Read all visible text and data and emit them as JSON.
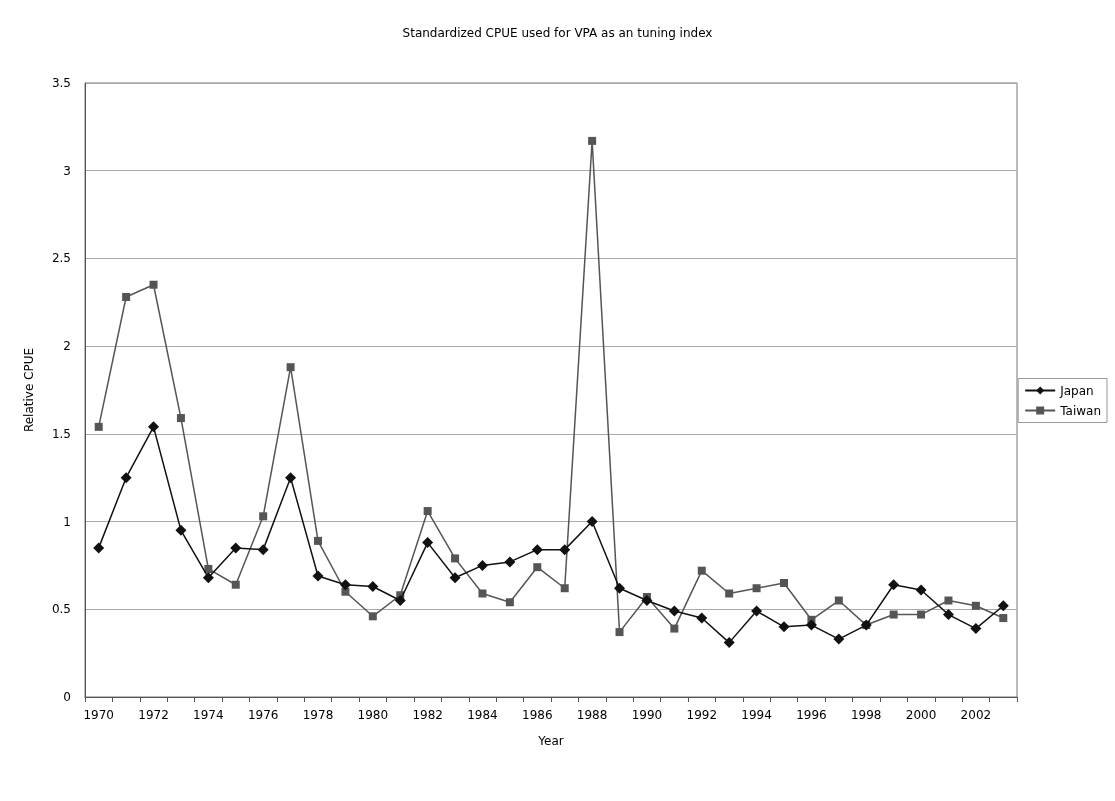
{
  "chart_data": {
    "type": "line",
    "title": "Standardized CPUE used for VPA as an tuning index",
    "xlabel": "Year",
    "ylabel": "Relative CPUE",
    "categories": [
      "1970",
      null,
      "1972",
      null,
      "1974",
      null,
      "1976",
      null,
      "1978",
      null,
      "1980",
      null,
      "1982",
      null,
      "1984",
      null,
      "1986",
      null,
      "1988",
      null,
      "1990",
      null,
      "1992",
      null,
      "1994",
      null,
      "1996",
      null,
      "1998",
      null,
      "2000",
      null,
      "2002",
      null
    ],
    "series": [
      {
        "name": "Japan",
        "color": "#111111",
        "marker": "diamond",
        "values": [
          0.85,
          1.25,
          1.54,
          0.95,
          0.68,
          0.85,
          0.84,
          1.25,
          0.69,
          0.64,
          0.63,
          0.55,
          0.88,
          0.68,
          0.75,
          0.77,
          0.84,
          0.84,
          1.0,
          0.62,
          0.55,
          0.49,
          0.45,
          0.31,
          0.49,
          0.4,
          0.41,
          0.33,
          0.41,
          0.64,
          0.61,
          0.47,
          0.39,
          0.52
        ]
      },
      {
        "name": "Taiwan",
        "color": "#555555",
        "marker": "square",
        "values": [
          1.54,
          2.28,
          2.35,
          1.59,
          0.73,
          0.64,
          1.03,
          1.88,
          0.89,
          0.6,
          0.46,
          0.58,
          1.06,
          0.79,
          0.59,
          0.54,
          0.74,
          0.62,
          3.17,
          0.37,
          0.57,
          0.39,
          0.72,
          0.59,
          0.62,
          0.65,
          0.44,
          0.55,
          0.41,
          0.47,
          0.47,
          0.55,
          0.52,
          0.45
        ]
      }
    ],
    "ylim": [
      0,
      3.5
    ],
    "yticks": [
      0,
      0.5,
      1,
      1.5,
      2,
      2.5,
      3,
      3.5
    ],
    "grid": "y",
    "legend": "right",
    "line_style": "solid"
  }
}
